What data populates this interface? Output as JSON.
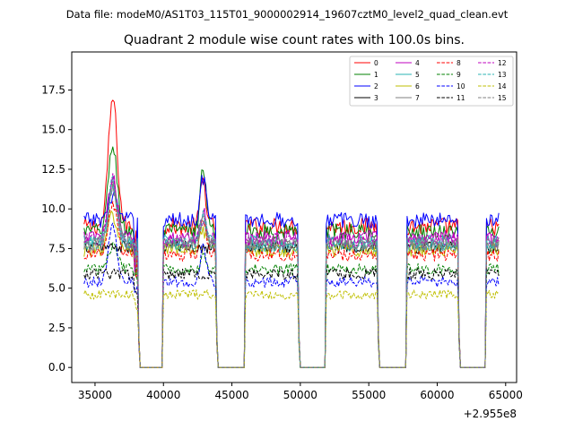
{
  "chart_data": {
    "type": "line",
    "suptitle": "Data file: modeM0/AS1T03_115T01_9000002914_19607cztM0_level2_quad_clean.evt",
    "title": "Quadrant 2 module wise count rates with 100.0s bins.",
    "xlabel": "",
    "ylabel": "",
    "x_offset_label": "+2.955e8",
    "xlim": [
      33300,
      65800
    ],
    "ylim": [
      -0.95,
      19.9
    ],
    "xticks": [
      35000,
      40000,
      45000,
      50000,
      55000,
      60000,
      65000
    ],
    "xtick_labels": [
      "35000",
      "40000",
      "45000",
      "50000",
      "55000",
      "60000",
      "65000"
    ],
    "yticks": [
      0.0,
      2.5,
      5.0,
      7.5,
      10.0,
      12.5,
      15.0,
      17.5
    ],
    "ytick_labels": [
      "0.0",
      "2.5",
      "5.0",
      "7.5",
      "10.0",
      "12.5",
      "15.0",
      "17.5"
    ],
    "segments": [
      [
        34200,
        38100
      ],
      [
        40000,
        43800
      ],
      [
        46000,
        49800
      ],
      [
        51900,
        55600
      ],
      [
        57800,
        61500
      ],
      [
        63600,
        64500
      ]
    ],
    "gaps_zero": [
      [
        38300,
        40000
      ],
      [
        43900,
        46000
      ],
      [
        49900,
        51900
      ],
      [
        55700,
        57800
      ],
      [
        61500,
        63600
      ]
    ],
    "bump1": {
      "center": 36300,
      "peaks": [
        17.0,
        14.0,
        10.9,
        5.6,
        11.9,
        11.4,
        9.6,
        11.6,
        10.3,
        7.7,
        8.9,
        5.5,
        11.9,
        11.7,
        4.3,
        11.2
      ]
    },
    "bump2": {
      "center": 42900,
      "peaks": [
        11.8,
        12.6,
        12.0,
        4.1,
        9.8,
        9.4,
        8.6,
        9.5,
        9.4,
        6.9,
        7.7,
        4.8,
        9.4,
        9.7,
        4.2,
        9.5
      ]
    },
    "series": [
      {
        "name": "0",
        "color": "#ff0000",
        "dash": false,
        "level": 8.9,
        "noise": 0.55
      },
      {
        "name": "1",
        "color": "#008000",
        "dash": false,
        "level": 8.6,
        "noise": 0.5
      },
      {
        "name": "2",
        "color": "#0000ff",
        "dash": false,
        "level": 9.3,
        "noise": 0.5
      },
      {
        "name": "3",
        "color": "#000000",
        "dash": false,
        "level": 7.6,
        "noise": 0.4
      },
      {
        "name": "4",
        "color": "#bf00bf",
        "dash": false,
        "level": 8.2,
        "noise": 0.45
      },
      {
        "name": "5",
        "color": "#2ab3b3",
        "dash": false,
        "level": 7.9,
        "noise": 0.45
      },
      {
        "name": "6",
        "color": "#bfbf00",
        "dash": false,
        "level": 7.4,
        "noise": 0.45
      },
      {
        "name": "7",
        "color": "#7f7f7f",
        "dash": false,
        "level": 7.8,
        "noise": 0.45
      },
      {
        "name": "8",
        "color": "#ff0000",
        "dash": true,
        "level": 7.1,
        "noise": 0.4
      },
      {
        "name": "9",
        "color": "#008000",
        "dash": true,
        "level": 6.2,
        "noise": 0.35
      },
      {
        "name": "10",
        "color": "#0000ff",
        "dash": true,
        "level": 5.4,
        "noise": 0.35
      },
      {
        "name": "11",
        "color": "#000000",
        "dash": true,
        "level": 5.9,
        "noise": 0.35
      },
      {
        "name": "12",
        "color": "#bf00bf",
        "dash": true,
        "level": 8.0,
        "noise": 0.45
      },
      {
        "name": "13",
        "color": "#2ab3b3",
        "dash": true,
        "level": 7.7,
        "noise": 0.45
      },
      {
        "name": "14",
        "color": "#bfbf00",
        "dash": true,
        "level": 4.6,
        "noise": 0.3
      },
      {
        "name": "15",
        "color": "#7f7f7f",
        "dash": true,
        "level": 7.8,
        "noise": 0.45
      }
    ]
  }
}
